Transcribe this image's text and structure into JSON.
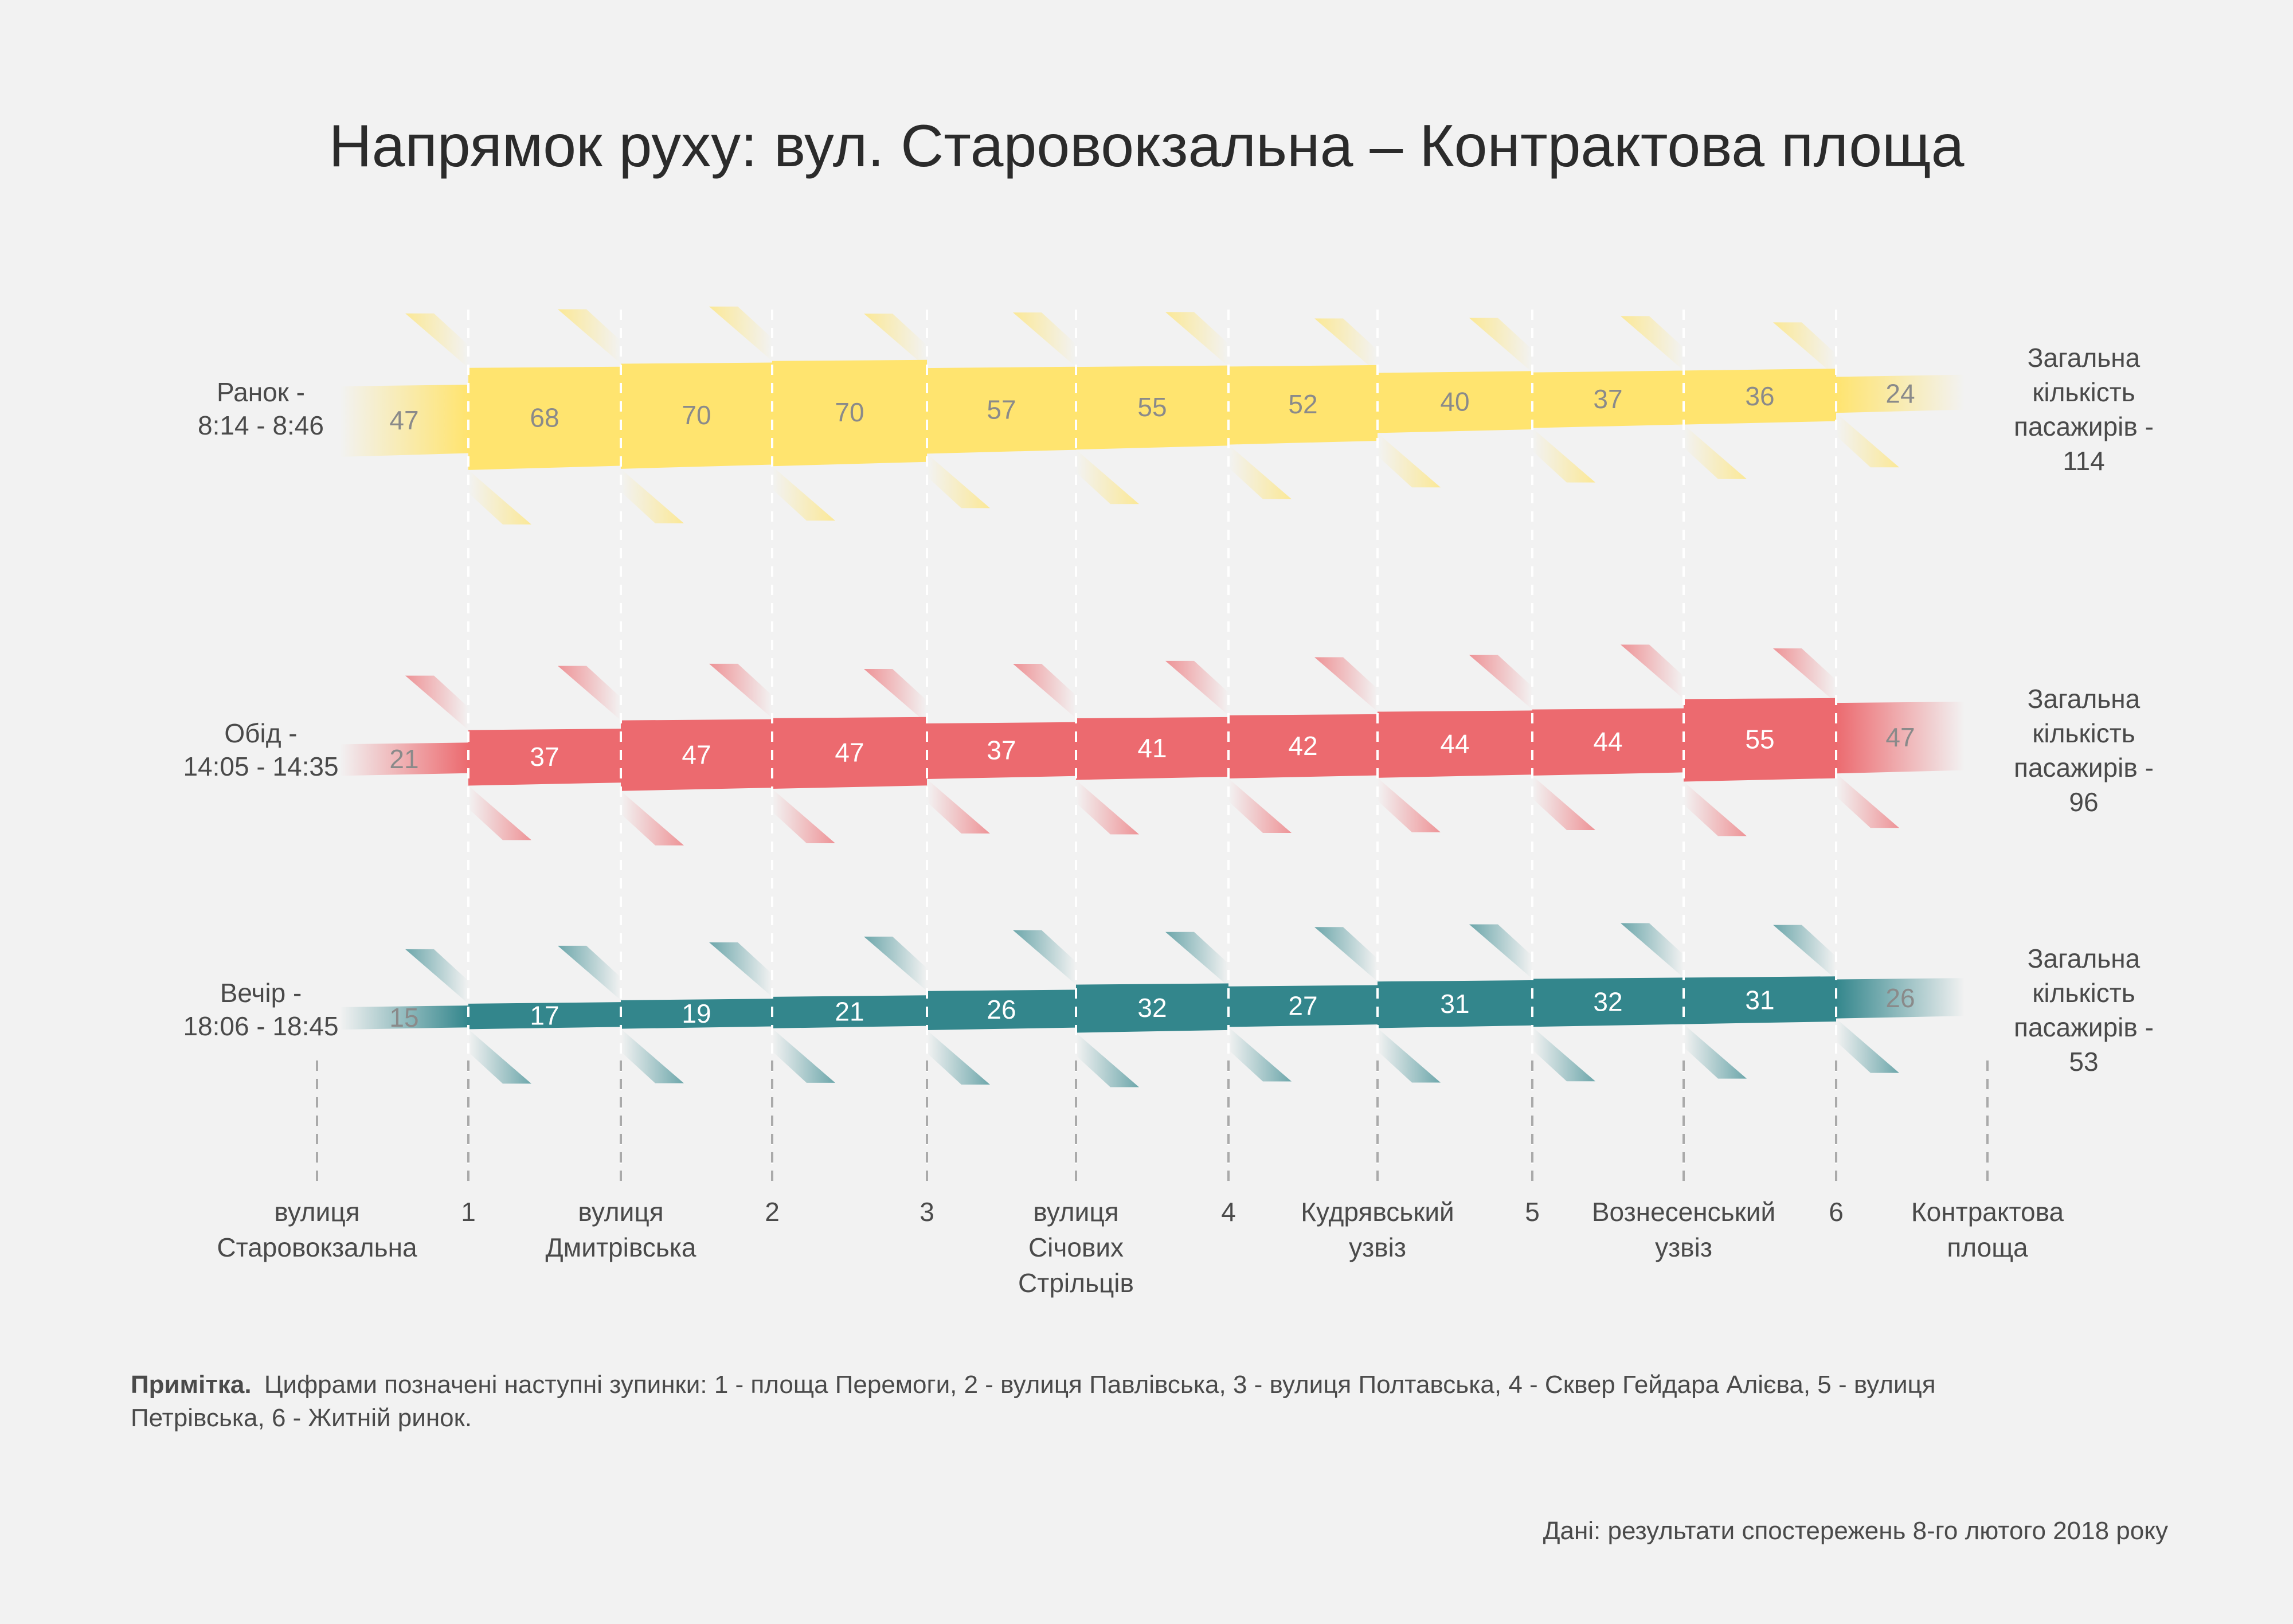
{
  "title": "Напрямок руху: вул. Старовокзальна – Контрактова площа",
  "note_prefix": "Примітка.",
  "note_line1": "Цифрами позначені наступні зупинки: 1 - площа Перемоги, 2 - вулиця Павлівська, 3 - вулиця Полтавська, 4 - Сквер Гейдара Алієва, 5 - вулиця",
  "note_line2": "Петрівська, 6 - Житній ринок.",
  "source": "Дані: результати спостережень 8-го лютого 2018 року",
  "colors": {
    "morning": "#ffe46f",
    "noon": "#ec6a6f",
    "evening": "#33868c",
    "background": "#f2f2f2"
  },
  "chart_data": {
    "type": "area",
    "stops": [
      [
        "вулиця",
        "Старовокзальна"
      ],
      [
        "1"
      ],
      [
        "вулиця",
        "Дмитрівська"
      ],
      [
        "2"
      ],
      [
        "3"
      ],
      [
        "вулиця",
        "Січових",
        "Стрільців"
      ],
      [
        "4"
      ],
      [
        "Кудрявський",
        "узвіз"
      ],
      [
        "5"
      ],
      [
        "Вознесенський",
        "узвіз"
      ],
      [
        "6"
      ],
      [
        "Контрактова",
        "площа"
      ]
    ],
    "series": [
      {
        "key": "morning",
        "label": [
          "Ранок -",
          "8:14 - 8:46"
        ],
        "values": [
          47,
          68,
          70,
          70,
          57,
          55,
          52,
          40,
          37,
          36,
          24
        ],
        "total": [
          "Загальна",
          "кількість",
          "пасажирів -",
          "114"
        ]
      },
      {
        "key": "noon",
        "label": [
          "Обід -",
          "14:05 - 14:35"
        ],
        "values": [
          21,
          37,
          47,
          47,
          37,
          41,
          42,
          44,
          44,
          55,
          47
        ],
        "total": [
          "Загальна",
          "кількість",
          "пасажирів -",
          "96"
        ]
      },
      {
        "key": "evening",
        "label": [
          "Вечір -",
          "18:06 - 18:45"
        ],
        "values": [
          15,
          17,
          19,
          21,
          26,
          32,
          27,
          31,
          32,
          31,
          26
        ],
        "total": [
          "Загальна",
          "кількість",
          "пасажирів -",
          "53"
        ]
      }
    ]
  }
}
